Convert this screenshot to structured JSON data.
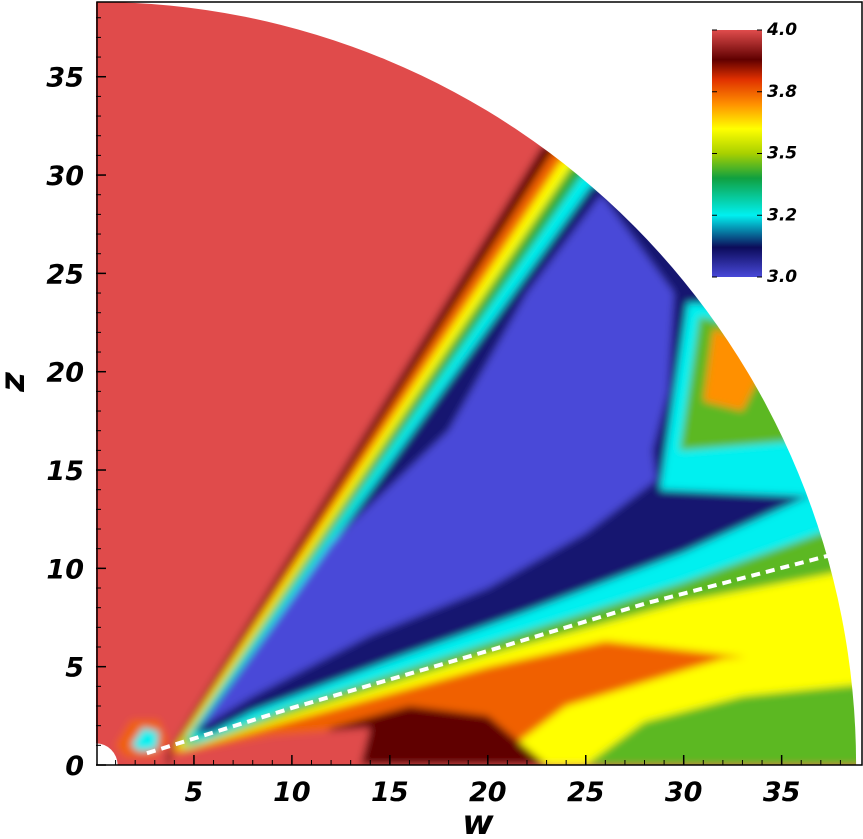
{
  "chart_data": {
    "type": "contour",
    "xlabel": "w",
    "ylabel": "z",
    "xlim": [
      0,
      39
    ],
    "ylim": [
      0,
      38.8
    ],
    "xticks": [
      5,
      10,
      15,
      20,
      25,
      30,
      35
    ],
    "yticks": [
      0,
      5,
      10,
      15,
      20,
      25,
      30,
      35
    ],
    "colorbar": {
      "ticks": [
        {
          "value": 4,
          "label": "4.0"
        },
        {
          "value": 3.75,
          "label": "3.8"
        },
        3.5,
        {
          "value": 3.25,
          "label": "3.2"
        },
        {
          "value": 3,
          "label": "3.0"
        }
      ],
      "colormap": [
        {
          "value": 3.0,
          "color": "#4848d8"
        },
        {
          "value": 3.12,
          "color": "#0c0c5a"
        },
        {
          "value": 3.25,
          "color": "#00f0f0"
        },
        {
          "value": 3.4,
          "color": "#10a040"
        },
        {
          "value": 3.5,
          "color": "#a8d000"
        },
        {
          "value": 3.6,
          "color": "#ffff00"
        },
        {
          "value": 3.7,
          "color": "#ff9000"
        },
        {
          "value": 3.8,
          "color": "#e03000"
        },
        {
          "value": 3.88,
          "color": "#600000"
        },
        {
          "value": 4.0,
          "color": "#e04c4c"
        }
      ]
    },
    "regions": [
      {
        "value": 4.0
      },
      {
        "value": 3.88
      },
      {
        "value": 3.75
      },
      {
        "value": 3.6
      },
      {
        "value": 3.42
      },
      {
        "value": 3.25
      },
      {
        "value": 3.1
      },
      {
        "value": 3.25
      },
      {
        "value": 3.45
      },
      {
        "value": 3.7
      },
      {
        "value": 3.0
      },
      {
        "value": 3.25
      },
      {
        "value": 3.45
      },
      {
        "value": 3.6
      },
      {
        "value": 3.75
      },
      {
        "value": 3.6
      },
      {
        "value": 3.45
      },
      {
        "value": 3.88
      },
      {
        "value": 4.0
      },
      {
        "value": 3.75
      },
      {
        "value": 3.25
      }
    ]
  }
}
